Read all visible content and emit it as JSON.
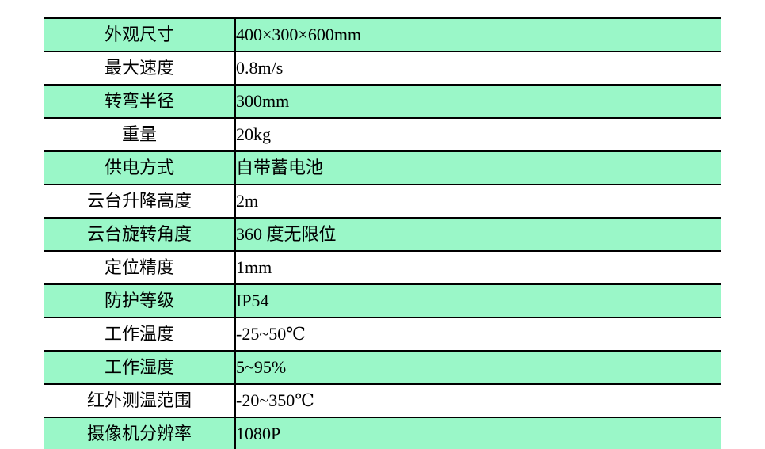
{
  "colors": {
    "row_shaded": "#9AF7C8",
    "row_plain": "#ffffff",
    "border": "#000000",
    "text": "#000000",
    "page_background": "#ffffff"
  },
  "table": {
    "rows": [
      {
        "label": "外观尺寸",
        "value": "400×300×600mm",
        "shaded": true
      },
      {
        "label": "最大速度",
        "value": "0.8m/s",
        "shaded": false
      },
      {
        "label": "转弯半径",
        "value": "300mm",
        "shaded": true
      },
      {
        "label": "重量",
        "value": "20kg",
        "shaded": false
      },
      {
        "label": "供电方式",
        "value": "自带蓄电池",
        "shaded": true
      },
      {
        "label": "云台升降高度",
        "value": "2m",
        "shaded": false
      },
      {
        "label": "云台旋转角度",
        "value": "360 度无限位",
        "shaded": true
      },
      {
        "label": "定位精度",
        "value": "1mm",
        "shaded": false
      },
      {
        "label": "防护等级",
        "value": "IP54",
        "shaded": true
      },
      {
        "label": "工作温度",
        "value": "-25~50℃",
        "shaded": false
      },
      {
        "label": "工作湿度",
        "value": "5~95%",
        "shaded": true
      },
      {
        "label": "红外测温范围",
        "value": "-20~350℃",
        "shaded": false
      },
      {
        "label": "摄像机分辨率",
        "value": "1080P",
        "shaded": true
      }
    ]
  }
}
